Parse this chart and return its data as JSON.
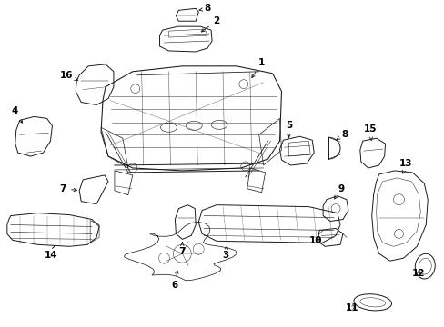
{
  "bg_color": "#ffffff",
  "line_color": "#1a1a1a",
  "figsize": [
    4.89,
    3.6
  ],
  "dpi": 100,
  "label_fontsize": 7.5
}
